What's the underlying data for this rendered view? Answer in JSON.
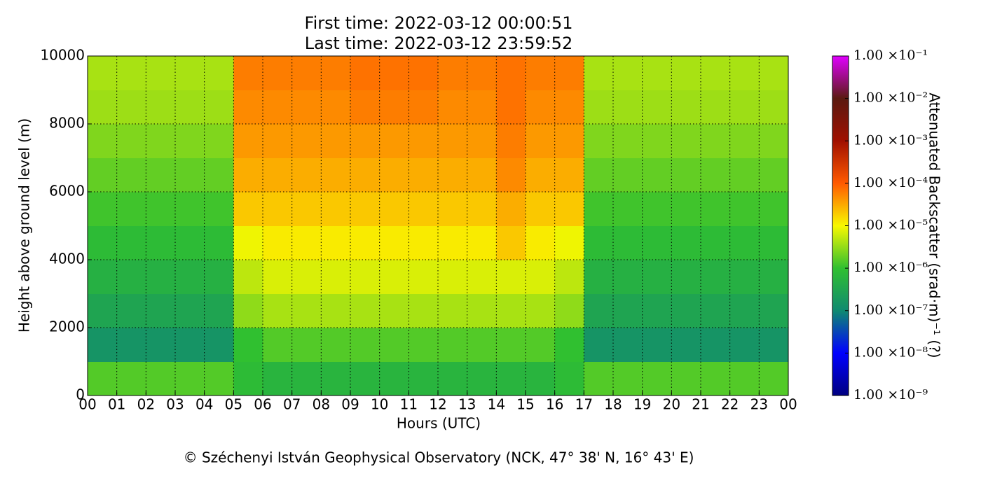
{
  "chart_data": {
    "type": "heatmap",
    "title": [
      "First time: 2022-03-12 00:00:51",
      "Last time: 2022-03-12 23:59:52"
    ],
    "x_label": "Hours (UTC)",
    "y_label": "Height above ground level (m)",
    "colorbar_label": "Attenuated Backscatter (srad·m)⁻¹ (?)",
    "footer": "© Széchenyi István Geophysical Observatory (NCK, 47° 38' N, 16° 43' E)",
    "xlim": [
      0,
      24
    ],
    "xticks": [
      {
        "value": 0,
        "label": "00"
      },
      {
        "value": 1,
        "label": "01"
      },
      {
        "value": 2,
        "label": "02"
      },
      {
        "value": 3,
        "label": "03"
      },
      {
        "value": 4,
        "label": "04"
      },
      {
        "value": 5,
        "label": "05"
      },
      {
        "value": 6,
        "label": "06"
      },
      {
        "value": 7,
        "label": "07"
      },
      {
        "value": 8,
        "label": "08"
      },
      {
        "value": 9,
        "label": "09"
      },
      {
        "value": 10,
        "label": "10"
      },
      {
        "value": 11,
        "label": "11"
      },
      {
        "value": 12,
        "label": "12"
      },
      {
        "value": 13,
        "label": "13"
      },
      {
        "value": 14,
        "label": "14"
      },
      {
        "value": 15,
        "label": "15"
      },
      {
        "value": 16,
        "label": "16"
      },
      {
        "value": 17,
        "label": "17"
      },
      {
        "value": 18,
        "label": "18"
      },
      {
        "value": 19,
        "label": "19"
      },
      {
        "value": 20,
        "label": "20"
      },
      {
        "value": 21,
        "label": "21"
      },
      {
        "value": 22,
        "label": "22"
      },
      {
        "value": 23,
        "label": "23"
      },
      {
        "value": 24,
        "label": "00"
      }
    ],
    "ylim": [
      0,
      10000
    ],
    "yticks": [
      0,
      2000,
      4000,
      6000,
      8000,
      10000
    ],
    "grid": true,
    "xbins": [
      0,
      1,
      2,
      3,
      4,
      5,
      6,
      7,
      8,
      9,
      10,
      11,
      12,
      13,
      14,
      15,
      16,
      17,
      18,
      19,
      20,
      21,
      22,
      23,
      24
    ],
    "ybins": [
      0,
      1000,
      2000,
      3000,
      4000,
      5000,
      6000,
      7000,
      8000,
      9000,
      10000
    ],
    "z": [
      [
        1.5e-06,
        1.5e-06,
        1.5e-06,
        1.5e-06,
        1.5e-06,
        8e-07,
        6e-07,
        6e-07,
        6e-07,
        6e-07,
        6e-07,
        6e-07,
        6e-07,
        6e-07,
        6e-07,
        6e-07,
        8e-07,
        1.5e-06,
        1.5e-06,
        1.5e-06,
        1.5e-06,
        1.5e-06,
        1.5e-06,
        1.5e-06
      ],
      [
        1.5e-07,
        1.5e-07,
        1.5e-07,
        1.5e-07,
        1.5e-07,
        1e-06,
        1.5e-06,
        1.5e-06,
        1.5e-06,
        1.5e-06,
        1.5e-06,
        1.5e-06,
        1.5e-06,
        1.5e-06,
        1.5e-06,
        1.5e-06,
        1e-06,
        1.5e-07,
        1.5e-07,
        1.5e-07,
        1.5e-07,
        1.5e-07,
        1.5e-07,
        1.5e-07
      ],
      [
        3e-07,
        3e-07,
        3e-07,
        3e-07,
        3e-07,
        3e-06,
        4e-06,
        4e-06,
        4e-06,
        4e-06,
        4e-06,
        4e-06,
        4e-06,
        4e-06,
        4e-06,
        4e-06,
        3e-06,
        3e-07,
        3e-07,
        3e-07,
        3e-07,
        3e-07,
        3e-07,
        3e-07
      ],
      [
        5e-07,
        5e-07,
        5e-07,
        5e-07,
        5e-07,
        5e-06,
        7e-06,
        7e-06,
        7e-06,
        7e-06,
        7e-06,
        7e-06,
        7e-06,
        7e-06,
        7e-06,
        7e-06,
        5e-06,
        5e-07,
        5e-07,
        5e-07,
        5e-07,
        5e-07,
        5e-07,
        5e-07
      ],
      [
        8e-07,
        8e-07,
        8e-07,
        8e-07,
        8e-07,
        9e-06,
        1.2e-05,
        1.2e-05,
        1.2e-05,
        1.2e-05,
        1.2e-05,
        1.2e-05,
        1.2e-05,
        1.2e-05,
        2e-05,
        1.2e-05,
        9e-06,
        8e-07,
        8e-07,
        8e-07,
        8e-07,
        8e-07,
        8e-07,
        8e-07
      ],
      [
        1.2e-06,
        1.2e-06,
        1.2e-06,
        1.2e-06,
        1.2e-06,
        2e-05,
        2e-05,
        2e-05,
        2e-05,
        2e-05,
        2e-05,
        2e-05,
        2e-05,
        2e-05,
        3e-05,
        2e-05,
        2e-05,
        1.2e-06,
        1.2e-06,
        1.2e-06,
        1.2e-06,
        1.2e-06,
        1.2e-06,
        1.2e-06
      ],
      [
        1.8e-06,
        1.8e-06,
        1.8e-06,
        1.8e-06,
        1.8e-06,
        3e-05,
        3e-05,
        3e-05,
        3e-05,
        3e-05,
        3e-05,
        3e-05,
        3e-05,
        3e-05,
        5e-05,
        3e-05,
        3e-05,
        1.8e-06,
        1.8e-06,
        1.8e-06,
        1.8e-06,
        1.8e-06,
        1.8e-06,
        1.8e-06
      ],
      [
        2.5e-06,
        2.5e-06,
        2.5e-06,
        2.5e-06,
        2.5e-06,
        4e-05,
        4e-05,
        4e-05,
        4e-05,
        4e-05,
        4e-05,
        4e-05,
        4e-05,
        4e-05,
        6e-05,
        4e-05,
        4e-05,
        2.5e-06,
        2.5e-06,
        2.5e-06,
        2.5e-06,
        2.5e-06,
        2.5e-06,
        2.5e-06
      ],
      [
        3.5e-06,
        3.5e-06,
        3.5e-06,
        3.5e-06,
        3.5e-06,
        5e-05,
        5e-05,
        5e-05,
        5e-05,
        6e-05,
        6e-05,
        6e-05,
        5e-05,
        5e-05,
        7e-05,
        5e-05,
        5e-05,
        3.5e-06,
        3.5e-06,
        3.5e-06,
        3.5e-06,
        3.5e-06,
        3.5e-06,
        3.5e-06
      ],
      [
        4e-06,
        4e-06,
        4e-06,
        4e-06,
        4e-06,
        6e-05,
        6e-05,
        6e-05,
        6e-05,
        7e-05,
        7e-05,
        7e-05,
        6e-05,
        6e-05,
        7e-05,
        6e-05,
        6e-05,
        4e-06,
        4e-06,
        4e-06,
        4e-06,
        4e-06,
        4e-06,
        4e-06
      ]
    ],
    "zscale": "log",
    "zlim": [
      1e-09,
      0.1
    ],
    "zticks": [
      {
        "value": 1e-09,
        "label": "1.00 ×10⁻⁹"
      },
      {
        "value": 1e-08,
        "label": "1.00 ×10⁻⁸"
      },
      {
        "value": 1e-07,
        "label": "1.00 ×10⁻⁷"
      },
      {
        "value": 1e-06,
        "label": "1.00 ×10⁻⁶"
      },
      {
        "value": 1e-05,
        "label": "1.00 ×10⁻⁵"
      },
      {
        "value": 0.0001,
        "label": "1.00 ×10⁻⁴"
      },
      {
        "value": 0.001,
        "label": "1.00 ×10⁻³"
      },
      {
        "value": 0.01,
        "label": "1.00 ×10⁻²"
      },
      {
        "value": 0.1,
        "label": "1.00 ×10⁻¹"
      }
    ],
    "colormap": [
      "#000080",
      "#0000ff",
      "#108a70",
      "#30c030",
      "#f8f800",
      "#ff5a00",
      "#a01000",
      "#5a1a10",
      "#e000ff"
    ]
  }
}
